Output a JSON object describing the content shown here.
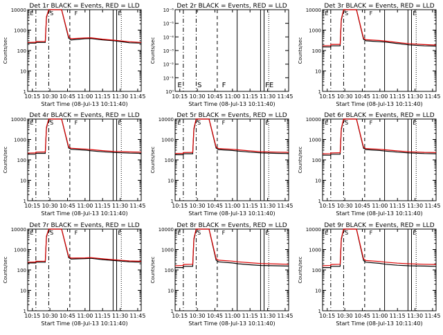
{
  "chart_data": [
    {
      "type": "line",
      "title": "Det 1r  BLACK = Events, RED = LLD",
      "xlabel": "Start Time (08-Jul-13 10:11:40)",
      "ylabel": "Counts/sec",
      "yscale": "log",
      "ylim": [
        1,
        10000
      ],
      "xlim": [
        "10:11",
        "11:48"
      ],
      "x_tick_labels": [
        "10:15",
        "10:30",
        "10:45",
        "11:00",
        "11:15",
        "11:30",
        "11:45"
      ],
      "y_tick_labels": [
        "1",
        "10",
        "100",
        "1000",
        "10000"
      ],
      "has_data": true,
      "markers": [
        "E",
        "S",
        "F",
        "E"
      ],
      "series": [
        {
          "color": "#000000",
          "x": [
            "10:11",
            "10:18",
            "10:18",
            "10:26",
            "10:27",
            "10:29",
            "10:40",
            "10:46",
            "10:48",
            "11:00",
            "11:05",
            "11:15",
            "11:25",
            "11:38",
            "11:48"
          ],
          "y": [
            230,
            230,
            250,
            250,
            4000,
            10000,
            10000,
            400,
            330,
            380,
            390,
            330,
            300,
            240,
            230
          ]
        },
        {
          "color": "#dd0000",
          "x": [
            "10:11",
            "10:18",
            "10:18",
            "10:26",
            "10:27",
            "10:29",
            "10:40",
            "10:46",
            "10:48",
            "11:00",
            "11:05",
            "11:15",
            "11:25",
            "11:38",
            "11:48"
          ],
          "y": [
            250,
            255,
            275,
            280,
            4500,
            10000,
            10000,
            460,
            380,
            410,
            420,
            360,
            320,
            270,
            250
          ]
        }
      ]
    },
    {
      "type": "line",
      "title": "Det 2r  BLACK = Events, RED = LLD",
      "xlabel": "Start Time (08-Jul-13 10:11:40)",
      "ylabel": "Counts/sec",
      "yscale": "log",
      "ylim": [
        1,
        1e-06
      ],
      "xlim": [
        "10:11",
        "11:48"
      ],
      "x_tick_labels": [
        "10:15",
        "10:30",
        "10:45",
        "11:00",
        "11:15",
        "11:30",
        "11:45"
      ],
      "y_tick_labels": [
        "10⁰",
        "10⁻¹",
        "10⁻²",
        "10⁻³",
        "10⁻⁴",
        "10⁻⁵",
        "10⁻⁶"
      ],
      "has_data": false,
      "markers": [
        "E",
        "S",
        "F",
        "FE"
      ],
      "series": []
    },
    {
      "type": "line",
      "title": "Det 3r  BLACK = Events, RED = LLD",
      "xlabel": "Start Time (08-Jul-13 10:11:40)",
      "ylabel": "Counts/sec",
      "yscale": "log",
      "ylim": [
        1,
        10000
      ],
      "xlim": [
        "10:11",
        "11:48"
      ],
      "x_tick_labels": [
        "10:15",
        "10:30",
        "10:45",
        "11:00",
        "11:15",
        "11:30",
        "11:45"
      ],
      "y_tick_labels": [
        "1",
        "10",
        "100",
        "1000",
        "10000"
      ],
      "has_data": true,
      "markers": [
        "E",
        "S",
        "F",
        "E"
      ],
      "series": [
        {
          "color": "#000000",
          "x": [
            "10:11",
            "10:18",
            "10:18",
            "10:26",
            "10:27",
            "10:29",
            "10:40",
            "10:46",
            "10:48",
            "11:00",
            "11:05",
            "11:15",
            "11:25",
            "11:38",
            "11:48"
          ],
          "y": [
            150,
            150,
            170,
            170,
            3000,
            10000,
            10000,
            350,
            300,
            270,
            260,
            220,
            190,
            170,
            165
          ]
        },
        {
          "color": "#dd0000",
          "x": [
            "10:11",
            "10:18",
            "10:18",
            "10:26",
            "10:27",
            "10:29",
            "10:40",
            "10:46",
            "10:48",
            "11:00",
            "11:05",
            "11:15",
            "11:25",
            "11:38",
            "11:48"
          ],
          "y": [
            170,
            175,
            200,
            200,
            3500,
            10000,
            10000,
            400,
            340,
            310,
            290,
            250,
            215,
            195,
            185
          ]
        }
      ]
    },
    {
      "type": "line",
      "title": "Det 4r  BLACK = Events, RED = LLD",
      "xlabel": "Start Time (08-Jul-13 10:11:40)",
      "ylabel": "Counts/sec",
      "yscale": "log",
      "ylim": [
        1,
        10000
      ],
      "xlim": [
        "10:11",
        "11:48"
      ],
      "x_tick_labels": [
        "10:15",
        "10:30",
        "10:45",
        "11:00",
        "11:15",
        "11:30",
        "11:45"
      ],
      "y_tick_labels": [
        "1",
        "10",
        "100",
        "1000",
        "10000"
      ],
      "has_data": true,
      "markers": [
        "E",
        "S",
        "F",
        "E"
      ],
      "series": [
        {
          "color": "#000000",
          "x": [
            "10:11",
            "10:18",
            "10:18",
            "10:26",
            "10:27",
            "10:29",
            "10:40",
            "10:46",
            "10:48",
            "11:00",
            "11:05",
            "11:15",
            "11:25",
            "11:38",
            "11:48"
          ],
          "y": [
            190,
            190,
            210,
            210,
            3500,
            10000,
            10000,
            380,
            330,
            300,
            280,
            250,
            230,
            215,
            210
          ]
        },
        {
          "color": "#dd0000",
          "x": [
            "10:11",
            "10:18",
            "10:18",
            "10:26",
            "10:27",
            "10:29",
            "10:40",
            "10:46",
            "10:48",
            "11:00",
            "11:05",
            "11:15",
            "11:25",
            "11:38",
            "11:48"
          ],
          "y": [
            215,
            220,
            240,
            245,
            4000,
            10000,
            10000,
            430,
            370,
            340,
            320,
            285,
            260,
            245,
            240
          ]
        }
      ]
    },
    {
      "type": "line",
      "title": "Det 5r  BLACK = Events, RED = LLD",
      "xlabel": "Start Time (08-Jul-13 10:11:40)",
      "ylabel": "Counts/sec",
      "yscale": "log",
      "ylim": [
        1,
        10000
      ],
      "xlim": [
        "10:11",
        "11:48"
      ],
      "x_tick_labels": [
        "10:15",
        "10:30",
        "10:45",
        "11:00",
        "11:15",
        "11:30",
        "11:45"
      ],
      "y_tick_labels": [
        "1",
        "10",
        "100",
        "1000",
        "10000"
      ],
      "has_data": true,
      "markers": [
        "E",
        "S",
        "F",
        "E"
      ],
      "series": [
        {
          "color": "#000000",
          "x": [
            "10:11",
            "10:18",
            "10:18",
            "10:26",
            "10:27",
            "10:29",
            "10:40",
            "10:46",
            "10:48",
            "11:00",
            "11:05",
            "11:15",
            "11:25",
            "11:38",
            "11:48"
          ],
          "y": [
            180,
            180,
            200,
            200,
            3000,
            10000,
            10000,
            380,
            320,
            290,
            270,
            240,
            220,
            210,
            205
          ]
        },
        {
          "color": "#dd0000",
          "x": [
            "10:11",
            "10:18",
            "10:18",
            "10:26",
            "10:27",
            "10:29",
            "10:40",
            "10:46",
            "10:48",
            "11:00",
            "11:05",
            "11:15",
            "11:25",
            "11:38",
            "11:48"
          ],
          "y": [
            205,
            210,
            230,
            235,
            3500,
            10000,
            10000,
            430,
            360,
            330,
            310,
            275,
            250,
            240,
            235
          ]
        }
      ]
    },
    {
      "type": "line",
      "title": "Det 6r  BLACK = Events, RED = LLD",
      "xlabel": "Start Time (08-Jul-13 10:11:40)",
      "ylabel": "Counts/sec",
      "yscale": "log",
      "ylim": [
        1,
        10000
      ],
      "xlim": [
        "10:11",
        "11:48"
      ],
      "x_tick_labels": [
        "10:15",
        "10:30",
        "10:45",
        "11:00",
        "11:15",
        "11:30",
        "11:45"
      ],
      "y_tick_labels": [
        "1",
        "10",
        "100",
        "1000",
        "10000"
      ],
      "has_data": true,
      "markers": [
        "E",
        "S",
        "F",
        "E"
      ],
      "series": [
        {
          "color": "#000000",
          "x": [
            "10:11",
            "10:18",
            "10:18",
            "10:26",
            "10:27",
            "10:29",
            "10:40",
            "10:46",
            "10:48",
            "11:00",
            "11:05",
            "11:15",
            "11:25",
            "11:38",
            "11:48"
          ],
          "y": [
            170,
            170,
            190,
            190,
            3000,
            10000,
            10000,
            370,
            320,
            290,
            270,
            240,
            220,
            205,
            200
          ]
        },
        {
          "color": "#dd0000",
          "x": [
            "10:11",
            "10:18",
            "10:18",
            "10:26",
            "10:27",
            "10:29",
            "10:40",
            "10:46",
            "10:48",
            "11:00",
            "11:05",
            "11:15",
            "11:25",
            "11:38",
            "11:48"
          ],
          "y": [
            195,
            200,
            220,
            225,
            3500,
            10000,
            10000,
            420,
            360,
            330,
            310,
            275,
            250,
            235,
            230
          ]
        }
      ]
    },
    {
      "type": "line",
      "title": "Det 7r  BLACK = Events, RED = LLD",
      "xlabel": "Start Time (08-Jul-13 10:11:40)",
      "ylabel": "Counts/sec",
      "yscale": "log",
      "ylim": [
        1,
        10000
      ],
      "xlim": [
        "10:11",
        "11:48"
      ],
      "x_tick_labels": [
        "10:15",
        "10:30",
        "10:45",
        "11:00",
        "11:15",
        "11:30",
        "11:45"
      ],
      "y_tick_labels": [
        "1",
        "10",
        "100",
        "1000",
        "10000"
      ],
      "has_data": true,
      "markers": [
        "E",
        "S",
        "F",
        "E"
      ],
      "series": [
        {
          "color": "#000000",
          "x": [
            "10:11",
            "10:18",
            "10:18",
            "10:26",
            "10:27",
            "10:29",
            "10:40",
            "10:46",
            "10:48",
            "11:00",
            "11:05",
            "11:15",
            "11:25",
            "11:38",
            "11:48"
          ],
          "y": [
            220,
            220,
            240,
            240,
            4000,
            10000,
            10000,
            400,
            340,
            360,
            370,
            320,
            290,
            250,
            240
          ]
        },
        {
          "color": "#dd0000",
          "x": [
            "10:11",
            "10:18",
            "10:18",
            "10:26",
            "10:27",
            "10:29",
            "10:40",
            "10:46",
            "10:48",
            "11:00",
            "11:05",
            "11:15",
            "11:25",
            "11:38",
            "11:48"
          ],
          "y": [
            240,
            245,
            265,
            270,
            4500,
            10000,
            10000,
            450,
            380,
            390,
            400,
            350,
            315,
            275,
            265
          ]
        }
      ]
    },
    {
      "type": "line",
      "title": "Det 8r  BLACK = Events, RED = LLD",
      "xlabel": "Start Time (08-Jul-13 10:11:40)",
      "ylabel": "Counts/sec",
      "yscale": "log",
      "ylim": [
        1,
        10000
      ],
      "xlim": [
        "10:11",
        "11:48"
      ],
      "x_tick_labels": [
        "10:15",
        "10:30",
        "10:45",
        "11:00",
        "11:15",
        "11:30",
        "11:45"
      ],
      "y_tick_labels": [
        "1",
        "10",
        "100",
        "1000",
        "10000"
      ],
      "has_data": true,
      "markers": [
        "E",
        "S",
        "F",
        "E"
      ],
      "series": [
        {
          "color": "#000000",
          "x": [
            "10:11",
            "10:18",
            "10:18",
            "10:26",
            "10:27",
            "10:29",
            "10:40",
            "10:46",
            "10:48",
            "11:00",
            "11:05",
            "11:15",
            "11:25",
            "11:38",
            "11:48"
          ],
          "y": [
            130,
            130,
            150,
            150,
            3000,
            10000,
            10000,
            300,
            250,
            220,
            200,
            180,
            165,
            160,
            155
          ]
        },
        {
          "color": "#dd0000",
          "x": [
            "10:11",
            "10:18",
            "10:18",
            "10:26",
            "10:27",
            "10:29",
            "10:40",
            "10:46",
            "10:48",
            "11:00",
            "11:05",
            "11:15",
            "11:25",
            "11:38",
            "11:48"
          ],
          "y": [
            160,
            165,
            185,
            190,
            3500,
            10000,
            10000,
            360,
            300,
            270,
            250,
            225,
            205,
            195,
            190
          ]
        }
      ]
    },
    {
      "type": "line",
      "title": "Det 9r  BLACK = Events, RED = LLD",
      "xlabel": "Start Time (08-Jul-13 10:11:40)",
      "ylabel": "Counts/sec",
      "yscale": "log",
      "ylim": [
        1,
        10000
      ],
      "xlim": [
        "10:11",
        "11:48"
      ],
      "x_tick_labels": [
        "10:15",
        "10:30",
        "10:45",
        "11:00",
        "11:15",
        "11:30",
        "11:45"
      ],
      "y_tick_labels": [
        "1",
        "10",
        "100",
        "1000",
        "10000"
      ],
      "has_data": true,
      "markers": [
        "E",
        "S",
        "F",
        "E"
      ],
      "series": [
        {
          "color": "#000000",
          "x": [
            "10:11",
            "10:18",
            "10:18",
            "10:26",
            "10:27",
            "10:29",
            "10:40",
            "10:46",
            "10:48",
            "11:00",
            "11:05",
            "11:15",
            "11:25",
            "11:38",
            "11:48"
          ],
          "y": [
            130,
            130,
            150,
            150,
            3000,
            10000,
            10000,
            290,
            240,
            210,
            190,
            170,
            160,
            155,
            150
          ]
        },
        {
          "color": "#dd0000",
          "x": [
            "10:11",
            "10:18",
            "10:18",
            "10:26",
            "10:27",
            "10:29",
            "10:40",
            "10:46",
            "10:48",
            "11:00",
            "11:05",
            "11:15",
            "11:25",
            "11:38",
            "11:48"
          ],
          "y": [
            160,
            165,
            185,
            190,
            3500,
            10000,
            10000,
            350,
            290,
            260,
            240,
            215,
            200,
            190,
            185
          ]
        }
      ]
    }
  ]
}
